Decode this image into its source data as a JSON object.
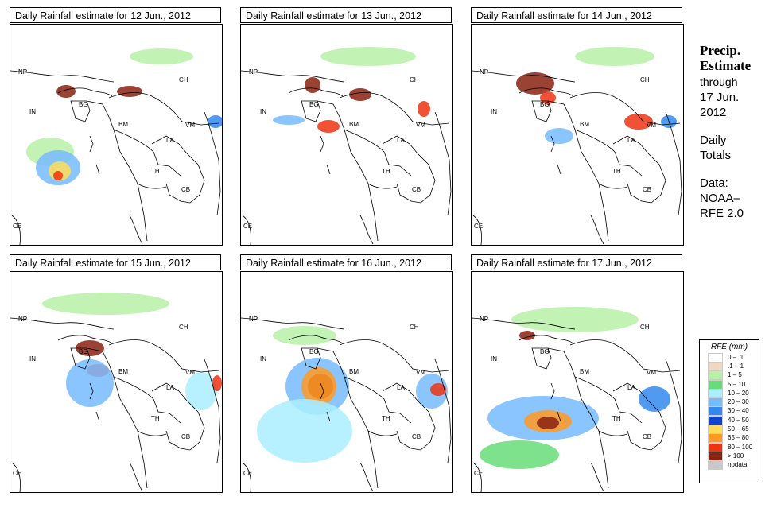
{
  "panels": [
    {
      "title": "Daily Rainfall estimate for  12 Jun., 2012"
    },
    {
      "title": "Daily Rainfall estimate for  13 Jun., 2012"
    },
    {
      "title": "Daily Rainfall estimate for  14 Jun., 2012"
    },
    {
      "title": "Daily Rainfall estimate for  15 Jun., 2012"
    },
    {
      "title": "Daily Rainfall estimate for  16 Jun., 2012"
    },
    {
      "title": "Daily Rainfall estimate for  17 Jun., 2012"
    }
  ],
  "map_labels": {
    "np": "NP",
    "in": "IN",
    "bg": "BG",
    "ch": "CH",
    "bm": "BM",
    "vm": "VM",
    "la": "LA",
    "th": "TH",
    "cb": "CB",
    "ce": "CE"
  },
  "sidebar": {
    "heading_line1": "Precip.",
    "heading_line2": "Estimate",
    "through": "through",
    "date_line1": "17 Jun.",
    "date_line2": "2012",
    "daily_line1": "Daily",
    "daily_line2": "Totals",
    "data_line1": "Data:",
    "data_line2": "NOAA–",
    "data_line3": "RFE 2.0"
  },
  "legend": {
    "title": "RFE (mm)",
    "items": [
      {
        "label": "0 – .1",
        "color": "#ffffff"
      },
      {
        "label": ".1 – 1",
        "color": "#eed9c0"
      },
      {
        "label": "1 – 5",
        "color": "#b8f0a8"
      },
      {
        "label": "5 – 10",
        "color": "#66dd77"
      },
      {
        "label": "10 – 20",
        "color": "#aaeeff"
      },
      {
        "label": "20 – 30",
        "color": "#77bbff"
      },
      {
        "label": "30 – 40",
        "color": "#3388ee"
      },
      {
        "label": "40 – 50",
        "color": "#1144cc"
      },
      {
        "label": "50 – 65",
        "color": "#ffdd55"
      },
      {
        "label": "65 – 80",
        "color": "#ff9922"
      },
      {
        "label": "80 – 100",
        "color": "#ee3311"
      },
      {
        "label": "> 100",
        "color": "#882211"
      },
      {
        "label": "nodata",
        "color": "#c8c8c8"
      }
    ]
  }
}
